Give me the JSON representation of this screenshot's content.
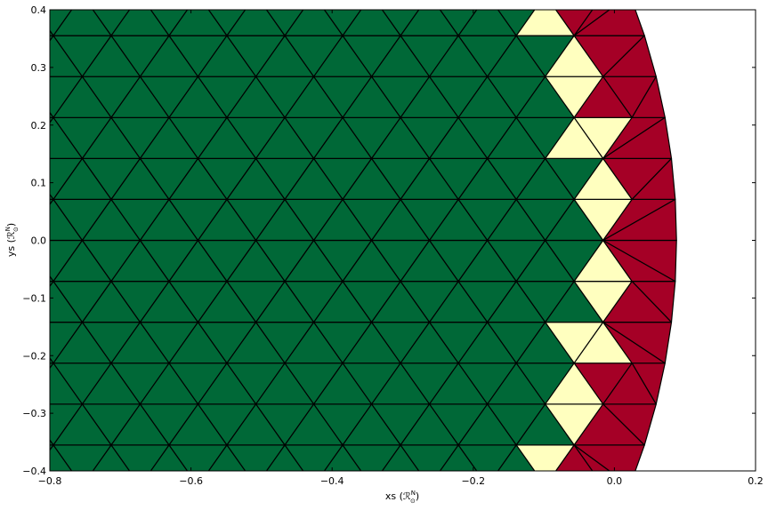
{
  "chart_data": {
    "type": "mesh",
    "title": "",
    "xlabel": "xs",
    "xlabel_unit": "(ℛ",
    "xlabel_unit_sup": "N",
    "xlabel_unit_sub": "⊙",
    "xlabel_unit_close": ")",
    "ylabel": "ys",
    "ylabel_unit": "(ℛ",
    "ylabel_unit_sup": "N",
    "ylabel_unit_sub": "⊙",
    "ylabel_unit_close": ")",
    "xlim": [
      -0.8,
      0.2
    ],
    "ylim": [
      -0.4,
      0.4
    ],
    "x_ticks": [
      -0.8,
      -0.6,
      -0.4,
      -0.2,
      0.0,
      0.2
    ],
    "x_tick_labels": [
      "−0.8",
      "−0.6",
      "−0.4",
      "−0.2",
      "0.0",
      "0.2"
    ],
    "y_ticks": [
      0.4,
      0.3,
      0.2,
      0.1,
      0.0,
      -0.1,
      -0.2,
      -0.3,
      -0.4
    ],
    "y_tick_labels": [
      "0.4",
      "0.3",
      "0.2",
      "0.1",
      "0.0",
      "−0.1",
      "−0.2",
      "−0.3",
      "−0.4"
    ],
    "grid": false,
    "colors": {
      "bulk": "#006837",
      "transition": "#ffffbf",
      "rim": "#a50026",
      "edge": "#000000"
    },
    "boundary": {
      "description_free_values": true,
      "center_x": -1.32,
      "radius": 1.41
    },
    "regions": [
      {
        "name": "bulk",
        "x_range": [
          -0.8,
          -0.07
        ]
      },
      {
        "name": "transition",
        "x_range": [
          -0.12,
          -0.02
        ]
      },
      {
        "name": "rim",
        "x_range": [
          -0.07,
          0.09
        ]
      }
    ]
  }
}
